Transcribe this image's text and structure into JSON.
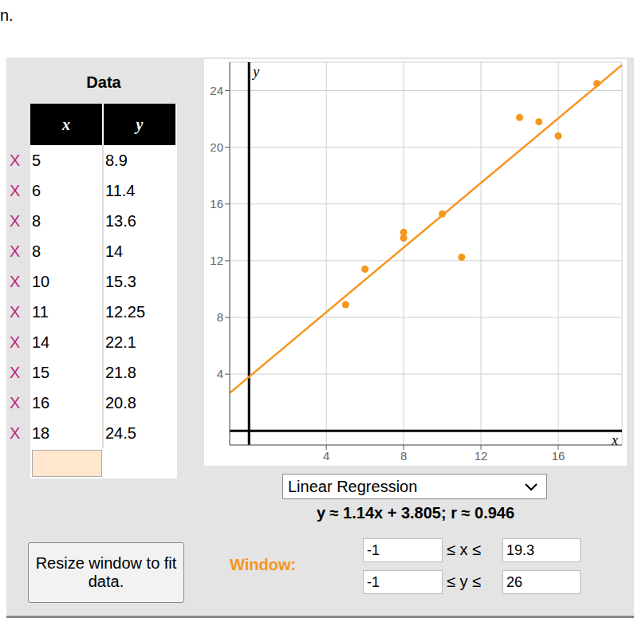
{
  "header_fragment": "n.",
  "data_panel": {
    "title": "Data",
    "columns": [
      "x",
      "y"
    ],
    "delete_mark": "X"
  },
  "chart_data": {
    "type": "scatter",
    "x": [
      5,
      6,
      8,
      8,
      10,
      11,
      14,
      15,
      16,
      18
    ],
    "values": [
      8.9,
      11.4,
      13.6,
      14,
      15.3,
      12.25,
      22.1,
      21.8,
      20.8,
      24.5
    ],
    "color": "#f5961e",
    "x_label": "x",
    "y_label": "y",
    "xlim": [
      -1,
      19.3
    ],
    "ylim": [
      -1,
      26
    ],
    "xticks": [
      4,
      8,
      12,
      16
    ],
    "yticks": [
      4,
      8,
      12,
      16,
      20,
      24
    ],
    "grid": true,
    "regression": {
      "slope": 1.14,
      "intercept": 3.805,
      "color": "#f5961e",
      "label": "y ≈ 1.14x + 3.805; r ≈ 0.946"
    }
  },
  "controls": {
    "model": "Linear Regression",
    "window_label": "Window:",
    "x_relation": "≤ x ≤",
    "y_relation": "≤ y ≤",
    "button": "Resize window to fit data."
  }
}
